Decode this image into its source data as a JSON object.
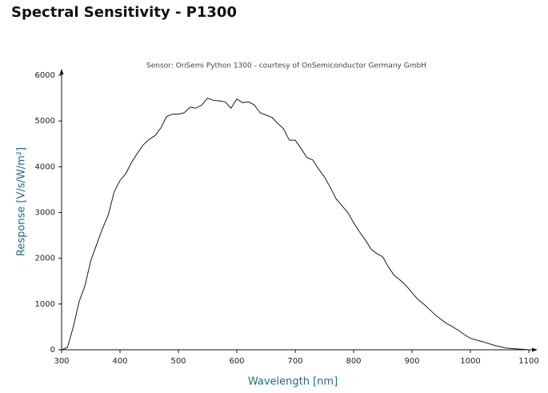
{
  "chart_data": {
    "type": "line",
    "title": "Spectral Sensitivity - P1300",
    "subtitle": "Sensor: OnSemi Python 1300 - courtesy of OnSemiconductor Germany GmbH",
    "x_label": "Wavelength [nm]",
    "y_label": "Response [V/s/W/m²]",
    "x": [
      300,
      310,
      320,
      330,
      340,
      350,
      360,
      370,
      380,
      390,
      400,
      410,
      420,
      430,
      440,
      450,
      460,
      470,
      480,
      490,
      500,
      510,
      520,
      530,
      540,
      550,
      560,
      570,
      580,
      590,
      600,
      610,
      620,
      630,
      640,
      650,
      660,
      670,
      680,
      690,
      700,
      710,
      720,
      730,
      740,
      750,
      760,
      770,
      780,
      790,
      800,
      810,
      820,
      830,
      840,
      850,
      860,
      870,
      880,
      890,
      900,
      910,
      920,
      930,
      940,
      950,
      960,
      970,
      980,
      990,
      1000,
      1020,
      1040,
      1060,
      1080,
      1100
    ],
    "series": [
      {
        "name": "Response",
        "color": "#1a1a1a",
        "values": [
          0,
          50,
          500,
          1050,
          1400,
          1950,
          2300,
          2650,
          2950,
          3450,
          3700,
          3850,
          4100,
          4300,
          4480,
          4600,
          4680,
          4850,
          5100,
          5150,
          5150,
          5180,
          5300,
          5280,
          5350,
          5500,
          5450,
          5440,
          5420,
          5280,
          5480,
          5400,
          5420,
          5350,
          5180,
          5130,
          5080,
          4950,
          4830,
          4580,
          4580,
          4400,
          4200,
          4150,
          3950,
          3780,
          3550,
          3300,
          3150,
          3000,
          2780,
          2580,
          2400,
          2200,
          2100,
          2030,
          1800,
          1620,
          1520,
          1400,
          1250,
          1100,
          1000,
          880,
          760,
          660,
          570,
          500,
          420,
          330,
          250,
          180,
          100,
          40,
          20,
          0
        ]
      }
    ],
    "xlim": [
      300,
      1100
    ],
    "xticks": [
      300,
      400,
      500,
      600,
      700,
      800,
      900,
      1000,
      1100
    ],
    "ylim": [
      0,
      6000
    ],
    "yticks": [
      0,
      1000,
      2000,
      3000,
      4000,
      5000,
      6000
    ]
  }
}
